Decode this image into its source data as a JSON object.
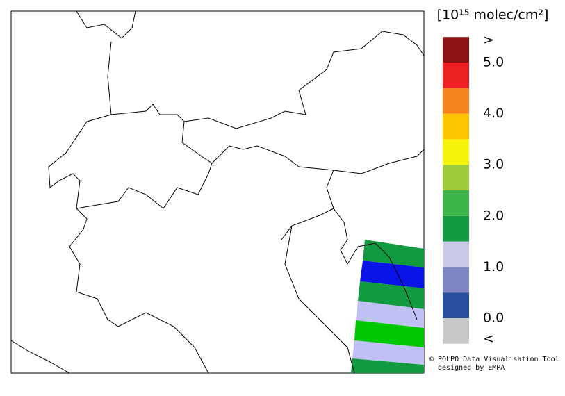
{
  "colorbar": {
    "unit": "[10¹⁵ molec/cm²]",
    "lim": [
      0,
      5
    ],
    "colors": [
      "#2a4fa0",
      "#7f86c4",
      "#c8c8e8",
      "#129a40",
      "#3cb44a",
      "#9ccc3a",
      "#f7f30a",
      "#fcc600",
      "#f5821f",
      "#ed2024"
    ],
    "over_color": "#8b1313",
    "under_color": "#c8c8c8",
    "over_label": ">",
    "under_label": "<",
    "ticks": [
      {
        "value": 0,
        "label": "0.0"
      },
      {
        "value": 1,
        "label": "1.0"
      },
      {
        "value": 2,
        "label": "2.0"
      },
      {
        "value": 3,
        "label": "3.0"
      },
      {
        "value": 4,
        "label": "4.0"
      },
      {
        "value": 5,
        "label": "5.0"
      }
    ]
  },
  "credit": {
    "line1": "© POLPO Data Visualisation Tool",
    "line2": "designed by EMPA"
  }
}
